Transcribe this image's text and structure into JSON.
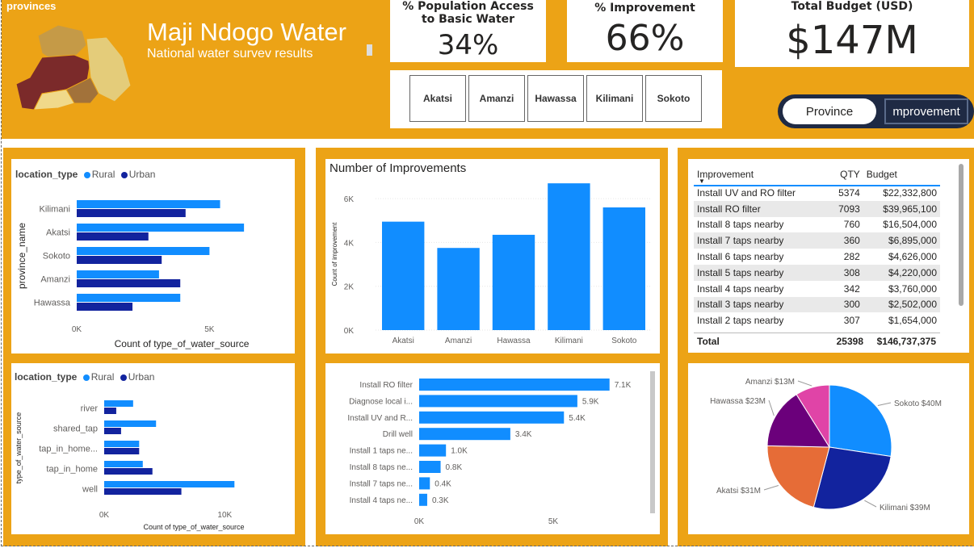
{
  "header": {
    "provinces_label": "provinces",
    "title": "Maji Ndogo Water",
    "subtitle": "National  water survev results",
    "map_colors": [
      "#C59A47",
      "#7B2A2A",
      "#E4CC7A",
      "#A2723A",
      "#F0D98A"
    ]
  },
  "kpis": {
    "access": {
      "title": "% Population Access to Basic Water",
      "value": "34%"
    },
    "improvement": {
      "title": "% Improvement",
      "value": "66%"
    },
    "budget": {
      "title": "Total Budget (USD)",
      "value": "$147M"
    }
  },
  "province_slicer": [
    "Akatsi",
    "Amanzi",
    "Hawassa",
    "Kilimani",
    "Sokoto"
  ],
  "toggle": {
    "left": "Province",
    "right": "mprovement"
  },
  "colors": {
    "accent": "#ECA316",
    "rural": "#118DFF",
    "urban": "#12239E"
  },
  "province_chart": {
    "legend_title": "location_type",
    "legend": [
      "Rural",
      "Urban"
    ],
    "ylabel": "province_name",
    "xlabel": "Count of type_of_water_source",
    "xticks": [
      "0K",
      "5K"
    ],
    "chart_data": {
      "type": "bar",
      "orientation": "horizontal",
      "categories": [
        "Kilimani",
        "Akatsi",
        "Sokoto",
        "Amanzi",
        "Hawassa"
      ],
      "series": [
        {
          "name": "Rural",
          "values": [
            5400,
            6300,
            5000,
            3100,
            3900
          ]
        },
        {
          "name": "Urban",
          "values": [
            4100,
            2700,
            3200,
            3900,
            2100
          ]
        }
      ],
      "xlim": [
        0,
        8000
      ]
    }
  },
  "source_chart": {
    "legend_title": "location_type",
    "legend": [
      "Rural",
      "Urban"
    ],
    "ylabel": "type_of_water_source",
    "xlabel": "Count of type_of_water_source",
    "xticks": [
      "0K",
      "10K"
    ],
    "chart_data": {
      "type": "bar",
      "orientation": "horizontal",
      "categories": [
        "river",
        "shared_tap",
        "tap_in_home...",
        "tap_in_home",
        "well"
      ],
      "series": [
        {
          "name": "Rural",
          "values": [
            2400,
            4300,
            2900,
            3200,
            10800
          ]
        },
        {
          "name": "Urban",
          "values": [
            1000,
            1400,
            2900,
            4000,
            6400
          ]
        }
      ],
      "xlim": [
        0,
        15000
      ]
    }
  },
  "improvements_chart": {
    "title": "Number of Improvements",
    "ylabel": "Count of improvement",
    "yticks": [
      "0K",
      "2K",
      "4K",
      "6K"
    ],
    "chart_data": {
      "type": "bar",
      "categories": [
        "Akatsi",
        "Amanzi",
        "Hawassa",
        "Kilimani",
        "Sokoto"
      ],
      "values": [
        4950,
        3750,
        4350,
        6700,
        5600
      ],
      "ylim": [
        0,
        7000
      ]
    }
  },
  "improvement_types_chart": {
    "xticks": [
      "0K",
      "5K"
    ],
    "chart_data": {
      "type": "bar",
      "orientation": "horizontal",
      "categories": [
        "Install RO filter",
        "Diagnose local i...",
        "Install UV and R...",
        "Drill well",
        "Install 1 taps ne...",
        "Install 8 taps ne...",
        "Install 7 taps ne...",
        "Install 4 taps ne..."
      ],
      "values": [
        7100,
        5900,
        5400,
        3400,
        1000,
        800,
        400,
        300
      ],
      "labels": [
        "7.1K",
        "5.9K",
        "5.4K",
        "3.4K",
        "1.0K",
        "0.8K",
        "0.4K",
        "0.3K"
      ],
      "xlim": [
        0,
        7500
      ]
    }
  },
  "table": {
    "headers": [
      "Improvement",
      "QTY",
      "Budget"
    ],
    "rows": [
      [
        "Install UV and RO filter",
        "5374",
        "$22,332,800"
      ],
      [
        "Install RO filter",
        "7093",
        "$39,965,100"
      ],
      [
        "Install 8 taps nearby",
        "760",
        "$16,504,000"
      ],
      [
        "Install 7 taps nearby",
        "360",
        "$6,895,000"
      ],
      [
        "Install 6 taps nearby",
        "282",
        "$4,626,000"
      ],
      [
        "Install 5 taps nearby",
        "308",
        "$4,220,000"
      ],
      [
        "Install 4 taps nearby",
        "342",
        "$3,760,000"
      ],
      [
        "Install 3 taps nearby",
        "300",
        "$2,502,000"
      ],
      [
        "Install 2 taps nearby",
        "307",
        "$1,654,000"
      ]
    ],
    "total": [
      "Total",
      "25398",
      "$146,737,375"
    ]
  },
  "budget_pie": {
    "chart_data": {
      "type": "pie",
      "slices": [
        {
          "label": "Sokoto $40M",
          "value": 40,
          "color": "#118DFF"
        },
        {
          "label": "Kilimani $39M",
          "value": 39,
          "color": "#12239E"
        },
        {
          "label": "Akatsi $31M",
          "value": 31,
          "color": "#E66C37"
        },
        {
          "label": "Hawassa $23M",
          "value": 23,
          "color": "#6B007B"
        },
        {
          "label": "Amanzi $13M",
          "value": 13,
          "color": "#E044A7"
        }
      ]
    }
  }
}
